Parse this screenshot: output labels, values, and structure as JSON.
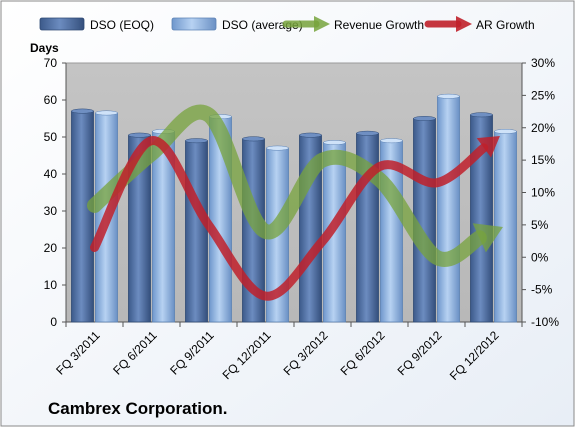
{
  "chart_data": {
    "type": "bar",
    "categories": [
      "FQ 3/2011",
      "FQ 6/2011",
      "FQ 9/2011",
      "FQ 12/2011",
      "FQ 3/2012",
      "FQ 6/2012",
      "FQ 9/2012",
      "FQ 12/2012"
    ],
    "series": [
      {
        "name": "DSO (EOQ)",
        "type": "bar",
        "axis": "left",
        "color": "#4F6FA0",
        "values": [
          57,
          50.5,
          49,
          49.5,
          50.5,
          51,
          55,
          56
        ]
      },
      {
        "name": "DSO (average)",
        "type": "bar",
        "axis": "left",
        "color": "#8FB4E3",
        "values": [
          56.5,
          51.5,
          55.5,
          47,
          48.5,
          49,
          61,
          51.5
        ]
      },
      {
        "name": "Revenue Growth",
        "type": "line",
        "axis": "right",
        "color": "#77A33C",
        "values": [
          8,
          16,
          22,
          4,
          15,
          12,
          0,
          4
        ]
      },
      {
        "name": "AR Growth",
        "type": "line",
        "axis": "right",
        "color": "#C0202A",
        "values": [
          1.5,
          18,
          5,
          -6,
          2.5,
          14,
          11.5,
          18
        ]
      }
    ],
    "ylabel": "Days",
    "ylim": [
      0,
      70
    ],
    "yticks": [
      "0",
      "10",
      "20",
      "30",
      "40",
      "50",
      "60",
      "70"
    ],
    "y2lim": [
      -10,
      30
    ],
    "y2ticks": [
      "-10%",
      "-5%",
      "0%",
      "5%",
      "10%",
      "15%",
      "20%",
      "25%",
      "30%"
    ],
    "grid": false,
    "legend_position": "top",
    "plot_background": "#C0C0C0",
    "title": "Cambrex Corporation."
  }
}
